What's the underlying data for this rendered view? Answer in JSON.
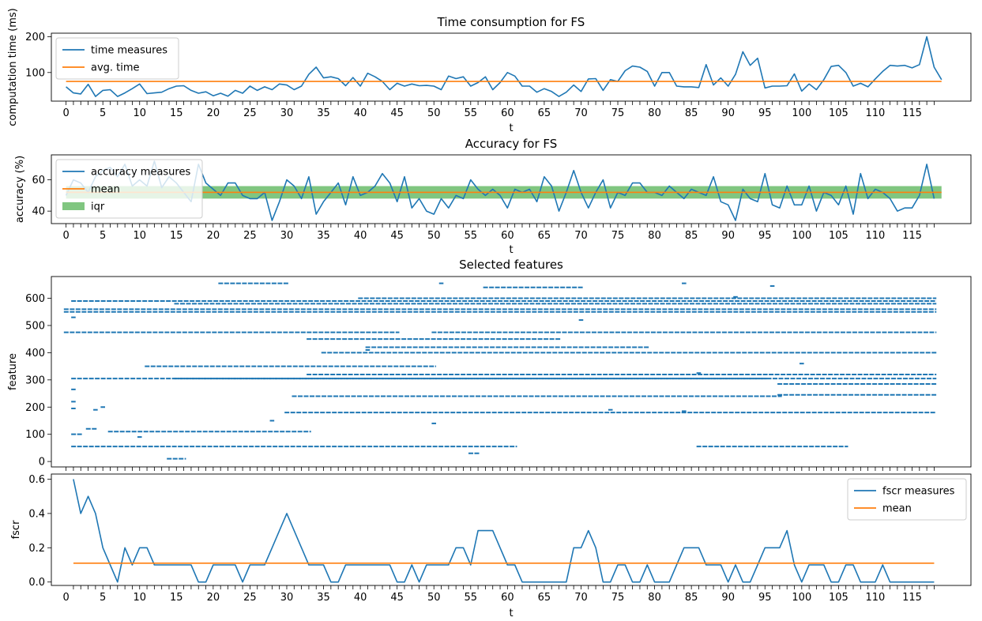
{
  "chart_data": [
    {
      "type": "line",
      "title": "Time consumption for FS",
      "xlabel": "t",
      "ylabel": "computation time (ms)",
      "xlim": [
        -2,
        123
      ],
      "ylim": [
        20,
        210
      ],
      "xticks_labeled": [
        0,
        5,
        10,
        15,
        20,
        25,
        30,
        35,
        40,
        45,
        50,
        55,
        60,
        65,
        70,
        75,
        80,
        85,
        90,
        95,
        100,
        105,
        110,
        115
      ],
      "xticks_minor": [
        0,
        118
      ],
      "yticks": [
        100,
        200
      ],
      "legend_position": "upper-left",
      "series": [
        {
          "name": "time measures",
          "color": "#1f77b4",
          "x_start": 0,
          "values": [
            60,
            43,
            40,
            67,
            33,
            50,
            52,
            33,
            43,
            55,
            68,
            41,
            43,
            45,
            55,
            62,
            63,
            50,
            42,
            46,
            35,
            42,
            34,
            50,
            42,
            62,
            50,
            60,
            52,
            68,
            65,
            52,
            62,
            95,
            115,
            85,
            88,
            83,
            63,
            86,
            62,
            98,
            88,
            75,
            52,
            70,
            62,
            68,
            63,
            64,
            62,
            52,
            90,
            83,
            88,
            62,
            72,
            88,
            52,
            72,
            100,
            90,
            62,
            62,
            45,
            55,
            47,
            33,
            45,
            65,
            47,
            82,
            83,
            50,
            80,
            75,
            105,
            118,
            115,
            103,
            62,
            100,
            100,
            62,
            60,
            60,
            58,
            122,
            65,
            85,
            62,
            95,
            158,
            120,
            140,
            57,
            62,
            62,
            63,
            96,
            48,
            68,
            52,
            80,
            117,
            120,
            100,
            62,
            70,
            60,
            82,
            103,
            120,
            118,
            120,
            113,
            122,
            200,
            115,
            80
          ]
        },
        {
          "name": "avg. time",
          "color": "#ff7f0e",
          "x_start": 0,
          "constant": 75,
          "x_end": 119
        }
      ]
    },
    {
      "type": "line",
      "title": "Accuracy for FS",
      "xlabel": "t",
      "ylabel": "accuracy (%)",
      "xlim": [
        -2,
        123
      ],
      "ylim": [
        32,
        76
      ],
      "xticks_labeled": [
        0,
        5,
        10,
        15,
        20,
        25,
        30,
        35,
        40,
        45,
        50,
        55,
        60,
        65,
        70,
        75,
        80,
        85,
        90,
        95,
        100,
        105,
        110,
        115
      ],
      "xticks_minor": [
        0,
        118
      ],
      "yticks": [
        40,
        60
      ],
      "legend_position": "upper-left",
      "series": [
        {
          "name": "accuracy measures",
          "color": "#1f77b4",
          "x_start": 0,
          "values": [
            50,
            60,
            58,
            52,
            62,
            66,
            68,
            62,
            70,
            56,
            60,
            56,
            72,
            55,
            62,
            58,
            52,
            46,
            70,
            58,
            54,
            50,
            58,
            58,
            50,
            48,
            48,
            52,
            34,
            46,
            60,
            56,
            48,
            62,
            38,
            46,
            52,
            58,
            44,
            62,
            50,
            52,
            56,
            64,
            58,
            46,
            62,
            42,
            48,
            40,
            38,
            48,
            42,
            50,
            48,
            60,
            54,
            50,
            54,
            50,
            42,
            54,
            52,
            54,
            46,
            62,
            56,
            40,
            52,
            66,
            52,
            42,
            52,
            60,
            42,
            52,
            50,
            58,
            58,
            52,
            52,
            50,
            56,
            52,
            48,
            54,
            52,
            50,
            62,
            46,
            44,
            34,
            54,
            48,
            46,
            64,
            44,
            42,
            56,
            44,
            44,
            56,
            40,
            52,
            50,
            44,
            56,
            38,
            64,
            48,
            54,
            52,
            48,
            40,
            42,
            42,
            50,
            70,
            48
          ]
        },
        {
          "name": "mean",
          "color": "#ff7f0e",
          "x_start": 0,
          "constant": 52,
          "x_end": 119
        }
      ],
      "bands": [
        {
          "name": "iqr",
          "color": "#2ca02c",
          "alpha": 0.6,
          "y0": 48,
          "y1": 56,
          "x0": 0,
          "x1": 119
        }
      ]
    },
    {
      "type": "scatter",
      "title": "Selected features",
      "ylabel": "feature",
      "xlim": [
        -2,
        123
      ],
      "ylim": [
        -20,
        680
      ],
      "yticks": [
        0,
        100,
        200,
        300,
        400,
        500,
        600
      ],
      "xticks_minor": [
        0,
        118
      ],
      "marker": "hline",
      "color": "#1f77b4",
      "runs": [
        [
          0,
          118,
          550
        ],
        [
          0,
          118,
          560
        ],
        [
          15,
          118,
          580
        ],
        [
          1,
          118,
          590
        ],
        [
          40,
          118,
          600
        ],
        [
          0,
          45,
          475
        ],
        [
          50,
          118,
          475
        ],
        [
          1,
          95,
          305
        ],
        [
          15,
          118,
          305
        ],
        [
          33,
          118,
          320
        ],
        [
          35,
          118,
          400
        ],
        [
          31,
          97,
          240
        ],
        [
          30,
          118,
          180
        ],
        [
          6,
          33,
          110
        ],
        [
          1,
          61,
          55
        ],
        [
          86,
          106,
          55
        ],
        [
          21,
          30,
          655
        ],
        [
          57,
          70,
          640
        ],
        [
          11,
          50,
          350
        ],
        [
          33,
          67,
          450
        ],
        [
          41,
          79,
          420
        ],
        [
          97,
          118,
          245
        ],
        [
          97,
          118,
          285
        ],
        [
          1,
          2,
          100
        ],
        [
          3,
          4,
          120
        ],
        [
          14,
          16,
          10
        ],
        [
          55,
          56,
          30
        ],
        [
          1,
          1,
          265
        ],
        [
          1,
          1,
          220
        ],
        [
          1,
          1,
          195
        ],
        [
          1,
          1,
          530
        ],
        [
          10,
          10,
          90
        ],
        [
          4,
          4,
          190
        ],
        [
          5,
          5,
          200
        ],
        [
          28,
          28,
          150
        ],
        [
          41,
          41,
          410
        ],
        [
          50,
          50,
          140
        ],
        [
          51,
          51,
          655
        ],
        [
          84,
          84,
          655
        ],
        [
          84,
          84,
          185
        ],
        [
          70,
          70,
          520
        ],
        [
          74,
          74,
          190
        ],
        [
          86,
          86,
          325
        ],
        [
          91,
          91,
          605
        ],
        [
          96,
          96,
          645
        ],
        [
          100,
          100,
          360
        ]
      ]
    },
    {
      "type": "line",
      "xlabel": "t",
      "ylabel": "fscr",
      "xlim": [
        -2,
        123
      ],
      "ylim": [
        -0.02,
        0.63
      ],
      "xticks_labeled": [
        0,
        5,
        10,
        15,
        20,
        25,
        30,
        35,
        40,
        45,
        50,
        55,
        60,
        65,
        70,
        75,
        80,
        85,
        90,
        95,
        100,
        105,
        110,
        115
      ],
      "xticks_minor": [
        1,
        118
      ],
      "yticks": [
        0.0,
        0.2,
        0.4,
        0.6
      ],
      "legend_position": "upper-right",
      "series": [
        {
          "name": "fscr measures",
          "color": "#1f77b4",
          "x_start": 1,
          "values": [
            0.6,
            0.4,
            0.5,
            0.4,
            0.2,
            0.1,
            0,
            0.2,
            0.1,
            0.2,
            0.2,
            0.1,
            0.1,
            0.1,
            0.1,
            0.1,
            0.1,
            0,
            0,
            0.1,
            0.1,
            0.1,
            0.1,
            0,
            0.1,
            0.1,
            0.1,
            0.2,
            0.3,
            0.4,
            0.3,
            0.2,
            0.1,
            0.1,
            0.1,
            0,
            0,
            0.1,
            0.1,
            0.1,
            0.1,
            0.1,
            0.1,
            0.1,
            0,
            0,
            0.1,
            0,
            0.1,
            0.1,
            0.1,
            0.1,
            0.2,
            0.2,
            0.1,
            0.3,
            0.3,
            0.3,
            0.2,
            0.1,
            0.1,
            0,
            0,
            0,
            0,
            0,
            0,
            0,
            0.2,
            0.2,
            0.3,
            0.2,
            0,
            0,
            0.1,
            0.1,
            0,
            0,
            0.1,
            0,
            0,
            0,
            0.1,
            0.2,
            0.2,
            0.2,
            0.1,
            0.1,
            0.1,
            0,
            0.1,
            0,
            0,
            0.1,
            0.2,
            0.2,
            0.2,
            0.3,
            0.1,
            0,
            0.1,
            0.1,
            0.1,
            0,
            0,
            0.1,
            0.1,
            0,
            0,
            0,
            0.1,
            0,
            0,
            0,
            0,
            0,
            0,
            0
          ]
        },
        {
          "name": "mean",
          "color": "#ff7f0e",
          "x_start": 1,
          "constant": 0.11,
          "x_end": 118
        }
      ]
    }
  ]
}
